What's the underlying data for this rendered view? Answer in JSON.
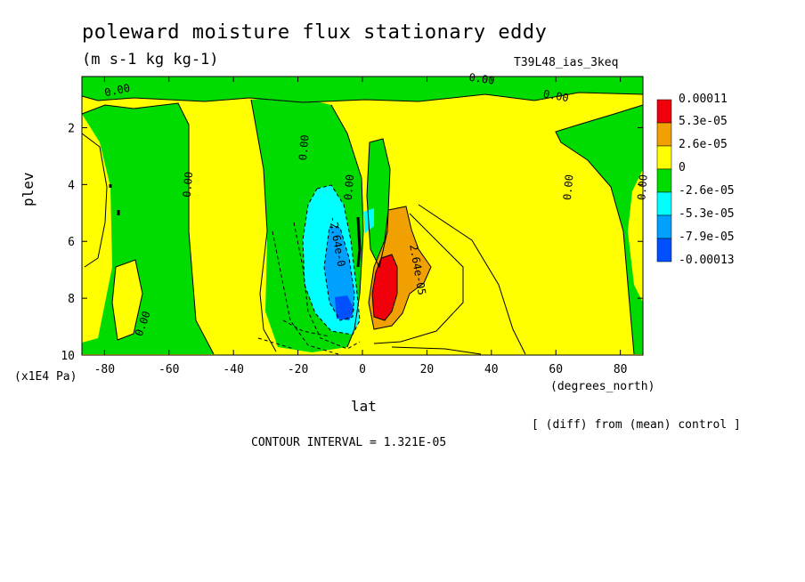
{
  "title": "poleward moisture flux stationary eddy",
  "units": "(m s-1 kg kg-1)",
  "run_id": "T39L48_ias_3keq",
  "note": "[ (diff) from (mean) control ]",
  "contour_interval": "CONTOUR INTERVAL = 1.321E-05",
  "chart_data": {
    "type": "heatmap",
    "xlabel": "lat",
    "x_unit": "(degrees_north)",
    "ylabel": "plev",
    "y_unit": "(x1E4 Pa)",
    "xlim": [
      -87,
      87
    ],
    "ylim": [
      10,
      0.2
    ],
    "x_ticks": [
      -80,
      -60,
      -40,
      -20,
      0,
      20,
      40,
      60,
      80
    ],
    "y_ticks": [
      2,
      4,
      6,
      8,
      10
    ],
    "x_tick_labels": [
      "-80",
      "-60",
      "-40",
      "-20",
      "0",
      "20",
      "40",
      "60",
      "80"
    ],
    "y_tick_labels": [
      "2",
      "4",
      "6",
      "8",
      "10"
    ],
    "colorbar": {
      "labels": [
        "0.00011",
        "5.3e-05",
        "2.6e-05",
        "0",
        "-2.6e-05",
        "-5.3e-05",
        "-7.9e-05",
        "-0.00013"
      ],
      "colors": [
        "#f0000a",
        "#f0a000",
        "#ffff00",
        "#00dc00",
        "#00ffff",
        "#00a0ff",
        "#0050ff"
      ]
    },
    "contour_labels": [
      {
        "text": "0.00",
        "lat": -76,
        "plev": 0.7,
        "angle": -12
      },
      {
        "text": "0.00",
        "lat": 37,
        "plev": 0.3,
        "angle": 8
      },
      {
        "text": "0.00",
        "lat": 60,
        "plev": 0.9,
        "angle": 10
      },
      {
        "text": "0.00",
        "lat": -18,
        "plev": 2.7,
        "angle": -85
      },
      {
        "text": "0.00",
        "lat": -54,
        "plev": 4.0,
        "angle": -85
      },
      {
        "text": "0.00",
        "lat": -4,
        "plev": 4.1,
        "angle": -85
      },
      {
        "text": "0.00",
        "lat": 64,
        "plev": 4.1,
        "angle": -85
      },
      {
        "text": "0.00",
        "lat": 87,
        "plev": 4.1,
        "angle": -85
      },
      {
        "text": "0.00",
        "lat": -68,
        "plev": 8.9,
        "angle": -70
      },
      {
        "text": "-2.64e-0",
        "lat": -8,
        "plev": 6.0,
        "angle": 80
      },
      {
        "text": "2.64e-05",
        "lat": 17,
        "plev": 7.0,
        "angle": 80
      }
    ],
    "regions": [
      {
        "value": 0,
        "color": "green",
        "shape": "upper band",
        "lat_range": [
          -87,
          87
        ],
        "plev_range": [
          0.2,
          1.0
        ]
      },
      {
        "value": 0,
        "color": "green",
        "shape": "north flank",
        "lat_range": [
          -87,
          -55
        ],
        "plev_range": [
          1.5,
          9.6
        ]
      },
      {
        "value": 0,
        "color": "green",
        "shape": "subtropical column",
        "lat_range": [
          -35,
          0
        ],
        "plev_range": [
          0.6,
          9.8
        ]
      },
      {
        "value": 0,
        "color": "green",
        "shape": "polar edge",
        "lat_range": [
          62,
          87
        ],
        "plev_range": [
          1.3,
          9.7
        ]
      },
      {
        "value": -2.6e-05,
        "color": "cyan",
        "lat_range": [
          -17,
          -2
        ],
        "plev_range": [
          4.1,
          9.2
        ]
      },
      {
        "value": -5.3e-05,
        "color": "blue",
        "lat_range": [
          -12,
          -5
        ],
        "plev_range": [
          5.5,
          8.9
        ]
      },
      {
        "value": -7.9e-05,
        "color": "darkblue",
        "lat_range": [
          -9,
          -4
        ],
        "plev_range": [
          7.8,
          8.6
        ]
      },
      {
        "value": 2.6e-05,
        "color": "orange",
        "lat_range": [
          8,
          22
        ],
        "plev_range": [
          4.7,
          9.1
        ]
      },
      {
        "value": 5.3e-05,
        "color": "red",
        "lat_range": [
          4,
          11
        ],
        "plev_range": [
          6.8,
          8.8
        ]
      }
    ],
    "grid": false,
    "legend_position": "right"
  }
}
